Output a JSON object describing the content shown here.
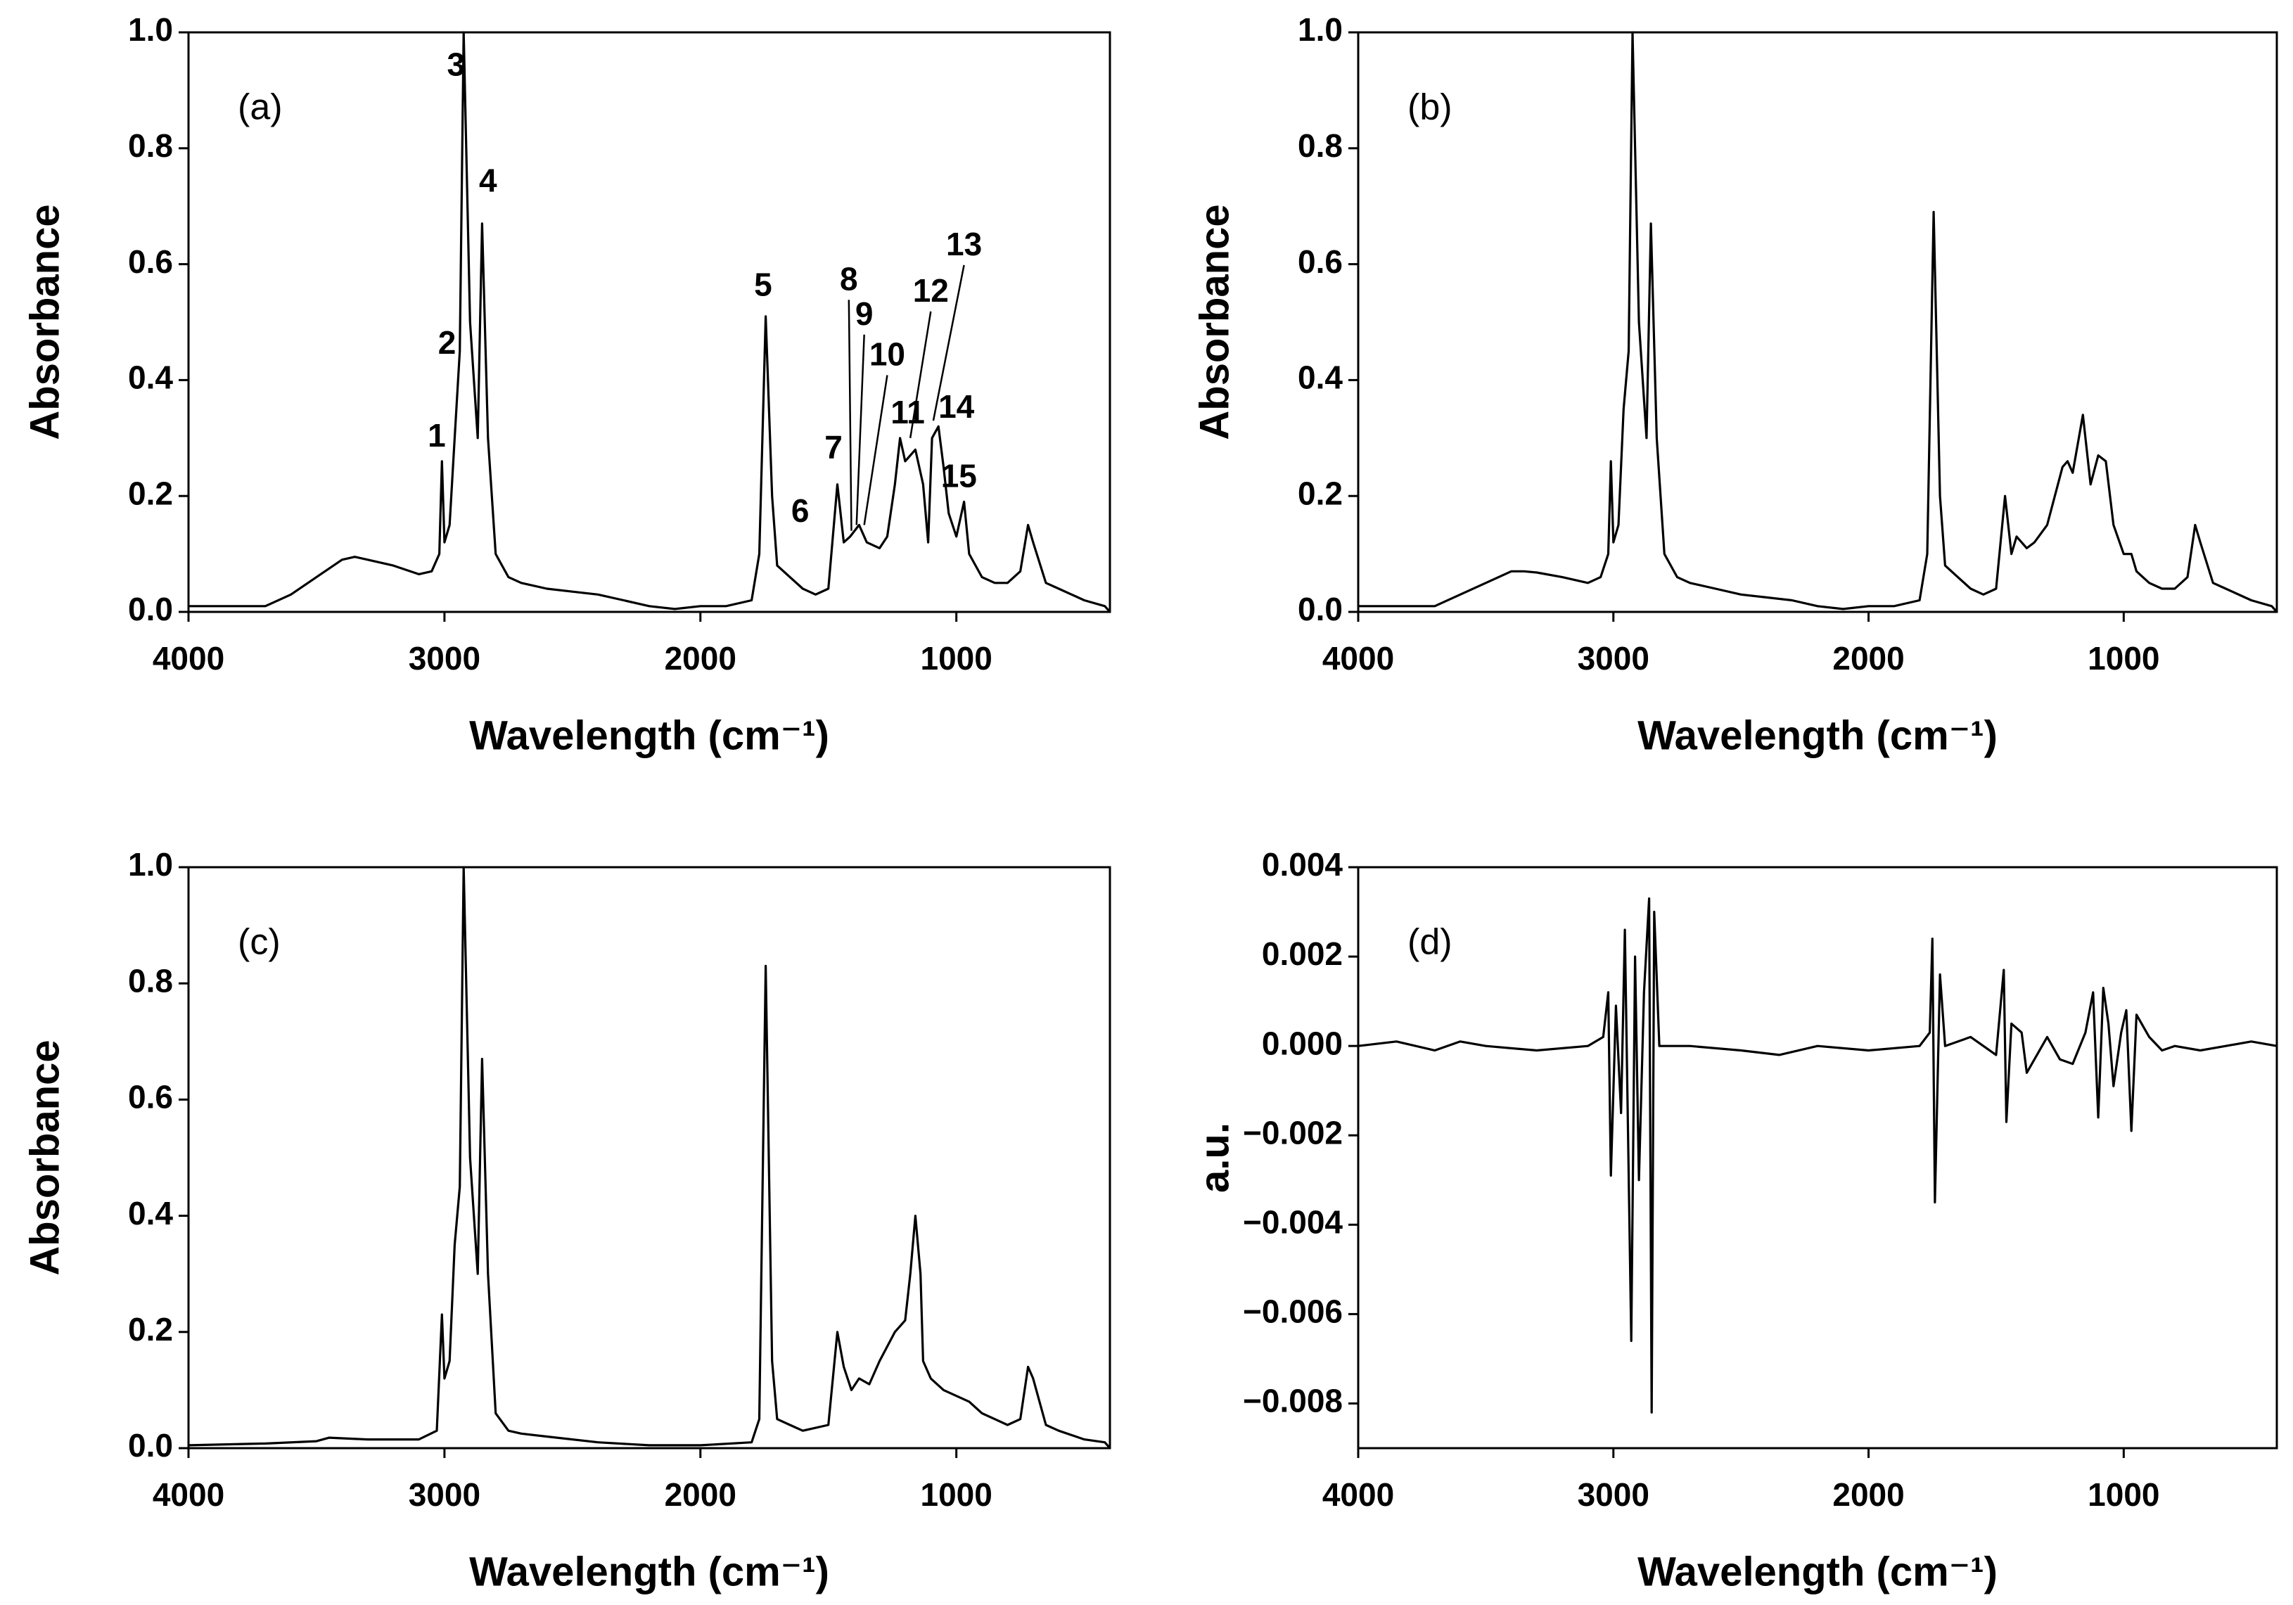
{
  "chart_data": [
    {
      "type": "line",
      "title": "(a)",
      "xlabel": "Wavelength (cm⁻¹)",
      "ylabel": "Absorbance",
      "color": "#000000",
      "xlim": [
        4000,
        400
      ],
      "xticks": [
        4000,
        3000,
        2000,
        1000
      ],
      "ylim": [
        0,
        1
      ],
      "yticks": [
        {
          "value": 0,
          "label": "0.0"
        },
        0.2,
        0.4,
        0.6,
        0.8,
        {
          "value": 1,
          "label": "1.0"
        }
      ],
      "x": [
        4000,
        3800,
        3700,
        3600,
        3500,
        3400,
        3350,
        3300,
        3200,
        3100,
        3050,
        3020,
        3010,
        3000,
        2980,
        2960,
        2940,
        2925,
        2900,
        2870,
        2853,
        2830,
        2800,
        2750,
        2700,
        2600,
        2500,
        2400,
        2300,
        2200,
        2100,
        2000,
        1900,
        1800,
        1770,
        1745,
        1720,
        1700,
        1650,
        1600,
        1550,
        1500,
        1465,
        1440,
        1415,
        1380,
        1350,
        1300,
        1270,
        1240,
        1220,
        1200,
        1160,
        1130,
        1110,
        1095,
        1070,
        1050,
        1030,
        1000,
        970,
        950,
        900,
        850,
        800,
        750,
        720,
        700,
        650,
        600,
        500,
        420,
        400
      ],
      "values": [
        0.01,
        0.01,
        0.01,
        0.03,
        0.06,
        0.09,
        0.095,
        0.09,
        0.08,
        0.065,
        0.07,
        0.1,
        0.26,
        0.12,
        0.15,
        0.3,
        0.45,
        1.0,
        0.5,
        0.3,
        0.67,
        0.3,
        0.1,
        0.06,
        0.05,
        0.04,
        0.035,
        0.03,
        0.02,
        0.01,
        0.005,
        0.01,
        0.01,
        0.02,
        0.1,
        0.51,
        0.2,
        0.08,
        0.06,
        0.04,
        0.03,
        0.04,
        0.22,
        0.12,
        0.13,
        0.15,
        0.12,
        0.11,
        0.13,
        0.22,
        0.3,
        0.26,
        0.28,
        0.22,
        0.12,
        0.3,
        0.32,
        0.25,
        0.17,
        0.13,
        0.19,
        0.1,
        0.06,
        0.05,
        0.05,
        0.07,
        0.15,
        0.12,
        0.05,
        0.04,
        0.02,
        0.01,
        0.0
      ],
      "annotations": [
        {
          "text": "1",
          "x": 3030,
          "y": 0.3
        },
        {
          "text": "2",
          "x": 2990,
          "y": 0.46
        },
        {
          "text": "3",
          "x": 2955,
          "y": 0.94
        },
        {
          "text": "4",
          "x": 2830,
          "y": 0.74
        },
        {
          "text": "5",
          "x": 1755,
          "y": 0.56
        },
        {
          "text": "6",
          "x": 1610,
          "y": 0.17
        },
        {
          "text": "7",
          "x": 1480,
          "y": 0.28
        },
        {
          "text": "8",
          "x": 1420,
          "y": 0.57,
          "arrow_to": [
            1410,
            0.14
          ]
        },
        {
          "text": "9",
          "x": 1360,
          "y": 0.51,
          "arrow_to": [
            1390,
            0.15
          ]
        },
        {
          "text": "10",
          "x": 1270,
          "y": 0.44,
          "arrow_to": [
            1360,
            0.15
          ]
        },
        {
          "text": "11",
          "x": 1190,
          "y": 0.34
        },
        {
          "text": "12",
          "x": 1100,
          "y": 0.55,
          "arrow_to": [
            1180,
            0.3
          ]
        },
        {
          "text": "13",
          "x": 970,
          "y": 0.63,
          "arrow_to": [
            1090,
            0.33
          ]
        },
        {
          "text": "14",
          "x": 1000,
          "y": 0.35
        },
        {
          "text": "15",
          "x": 990,
          "y": 0.23
        }
      ]
    },
    {
      "type": "line",
      "title": "(b)",
      "xlabel": "Wavelength (cm⁻¹)",
      "ylabel": "Absorbance",
      "color": "#000000",
      "xlim": [
        4000,
        400
      ],
      "xticks": [
        4000,
        3000,
        2000,
        1000
      ],
      "ylim": [
        0,
        1
      ],
      "yticks": [
        {
          "value": 0,
          "label": "0.0"
        },
        0.2,
        0.4,
        0.6,
        0.8,
        {
          "value": 1,
          "label": "1.0"
        }
      ],
      "x": [
        4000,
        3800,
        3700,
        3600,
        3500,
        3400,
        3350,
        3300,
        3200,
        3100,
        3050,
        3020,
        3010,
        3000,
        2980,
        2960,
        2940,
        2925,
        2900,
        2870,
        2853,
        2830,
        2800,
        2750,
        2700,
        2600,
        2500,
        2400,
        2300,
        2200,
        2100,
        2000,
        1900,
        1800,
        1770,
        1745,
        1720,
        1700,
        1650,
        1600,
        1550,
        1500,
        1465,
        1440,
        1420,
        1380,
        1350,
        1300,
        1240,
        1220,
        1200,
        1160,
        1130,
        1100,
        1070,
        1040,
        1000,
        970,
        950,
        900,
        850,
        800,
        750,
        720,
        700,
        650,
        600,
        500,
        420,
        400
      ],
      "values": [
        0.01,
        0.01,
        0.01,
        0.03,
        0.05,
        0.07,
        0.07,
        0.068,
        0.06,
        0.05,
        0.06,
        0.1,
        0.26,
        0.12,
        0.15,
        0.35,
        0.45,
        1.0,
        0.5,
        0.3,
        0.67,
        0.3,
        0.1,
        0.06,
        0.05,
        0.04,
        0.03,
        0.025,
        0.02,
        0.01,
        0.005,
        0.01,
        0.01,
        0.02,
        0.1,
        0.69,
        0.2,
        0.08,
        0.06,
        0.04,
        0.03,
        0.04,
        0.2,
        0.1,
        0.13,
        0.11,
        0.12,
        0.15,
        0.25,
        0.26,
        0.24,
        0.34,
        0.22,
        0.27,
        0.26,
        0.15,
        0.1,
        0.1,
        0.07,
        0.05,
        0.04,
        0.04,
        0.06,
        0.15,
        0.12,
        0.05,
        0.04,
        0.02,
        0.01,
        0.0
      ]
    },
    {
      "type": "line",
      "title": "(c)",
      "xlabel": "Wavelength (cm⁻¹)",
      "ylabel": "Absorbance",
      "color": "#000000",
      "xlim": [
        4000,
        400
      ],
      "xticks": [
        4000,
        3000,
        2000,
        1000
      ],
      "ylim": [
        0,
        1
      ],
      "yticks": [
        {
          "value": 0,
          "label": "0.0"
        },
        0.2,
        0.4,
        0.6,
        0.8,
        {
          "value": 1,
          "label": "1.0"
        }
      ],
      "x": [
        4000,
        3700,
        3500,
        3450,
        3300,
        3100,
        3030,
        3010,
        3000,
        2980,
        2960,
        2940,
        2925,
        2900,
        2870,
        2853,
        2830,
        2800,
        2750,
        2700,
        2600,
        2400,
        2200,
        2000,
        1800,
        1770,
        1745,
        1720,
        1700,
        1650,
        1600,
        1500,
        1465,
        1440,
        1410,
        1380,
        1340,
        1300,
        1240,
        1200,
        1180,
        1160,
        1140,
        1130,
        1100,
        1050,
        1000,
        950,
        900,
        850,
        800,
        750,
        720,
        700,
        650,
        600,
        500,
        420,
        400
      ],
      "values": [
        0.005,
        0.008,
        0.012,
        0.018,
        0.015,
        0.015,
        0.03,
        0.23,
        0.12,
        0.15,
        0.35,
        0.45,
        1.0,
        0.5,
        0.3,
        0.67,
        0.3,
        0.06,
        0.03,
        0.025,
        0.02,
        0.01,
        0.005,
        0.005,
        0.01,
        0.05,
        0.83,
        0.15,
        0.05,
        0.04,
        0.03,
        0.04,
        0.2,
        0.14,
        0.1,
        0.12,
        0.11,
        0.15,
        0.2,
        0.22,
        0.3,
        0.4,
        0.3,
        0.15,
        0.12,
        0.1,
        0.09,
        0.08,
        0.06,
        0.05,
        0.04,
        0.05,
        0.14,
        0.12,
        0.04,
        0.03,
        0.015,
        0.01,
        0.0
      ]
    },
    {
      "type": "line",
      "title": "(d)",
      "xlabel": "Wavelength (cm⁻¹)",
      "ylabel": "a.u.",
      "color": "#000000",
      "xlim": [
        4000,
        400
      ],
      "xticks": [
        4000,
        3000,
        2000,
        1000
      ],
      "ylim": [
        -0.009,
        0.004
      ],
      "yticks": [
        {
          "value": -0.008,
          "label": "−0.008"
        },
        {
          "value": -0.006,
          "label": "−0.006"
        },
        {
          "value": -0.004,
          "label": "−0.004"
        },
        {
          "value": -0.002,
          "label": "−0.002"
        },
        {
          "value": 0,
          "label": "0.000"
        },
        0.002,
        0.004
      ],
      "x": [
        4000,
        3850,
        3700,
        3600,
        3500,
        3300,
        3100,
        3040,
        3020,
        3010,
        2990,
        2970,
        2955,
        2930,
        2915,
        2900,
        2880,
        2860,
        2850,
        2840,
        2820,
        2700,
        2500,
        2350,
        2200,
        2000,
        1800,
        1760,
        1750,
        1740,
        1720,
        1700,
        1600,
        1500,
        1470,
        1460,
        1440,
        1400,
        1380,
        1300,
        1250,
        1200,
        1150,
        1120,
        1100,
        1080,
        1060,
        1040,
        1010,
        990,
        970,
        950,
        900,
        850,
        800,
        700,
        600,
        500,
        400
      ],
      "values": [
        0.0,
        0.0001,
        -0.0001,
        0.0001,
        0.0,
        -0.0001,
        0.0,
        0.0002,
        0.0012,
        -0.0029,
        0.0009,
        -0.0015,
        0.0026,
        -0.0066,
        0.002,
        -0.003,
        0.0012,
        0.0033,
        -0.0082,
        0.003,
        0.0,
        0.0,
        -0.0001,
        -0.0002,
        0.0,
        -0.0001,
        0.0,
        0.0003,
        0.0024,
        -0.0035,
        0.0016,
        0.0,
        0.0002,
        -0.0002,
        0.0017,
        -0.0017,
        0.0005,
        0.0003,
        -0.0006,
        0.0002,
        -0.0003,
        -0.0004,
        0.0003,
        0.0012,
        -0.0016,
        0.0013,
        0.0005,
        -0.0009,
        0.0003,
        0.0008,
        -0.0019,
        0.0007,
        0.0002,
        -0.0001,
        0.0,
        -0.0001,
        0.0,
        0.0001,
        0.0
      ]
    }
  ]
}
